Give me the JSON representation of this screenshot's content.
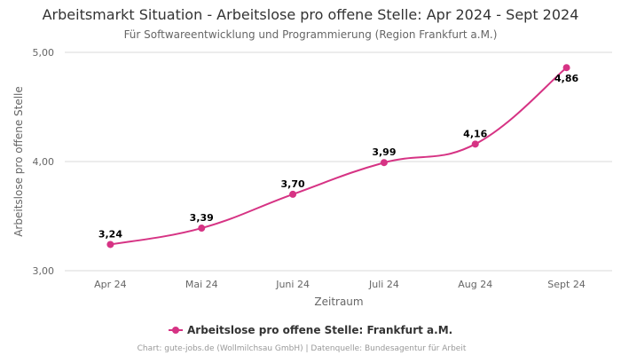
{
  "chart_data": {
    "type": "line",
    "title": "Arbeitsmarkt Situation - Arbeitslose pro offene Stelle: Apr 2024 - Sept 2024",
    "subtitle": "Für Softwareentwicklung und Programmierung (Region Frankfurt a.M.)",
    "xlabel": "Zeitraum",
    "ylabel": "Arbeitslose pro offene Stelle",
    "categories": [
      "Apr 24",
      "Mai 24",
      "Juni 24",
      "Juli 24",
      "Aug 24",
      "Sept 24"
    ],
    "series": [
      {
        "name": "Arbeitslose pro offene Stelle: Frankfurt a.M.",
        "values": [
          3.24,
          3.39,
          3.7,
          3.99,
          4.16,
          4.86
        ],
        "labels": [
          "3,24",
          "3,39",
          "3,70",
          "3,99",
          "4,16",
          "4,86"
        ],
        "color": "#d63384"
      }
    ],
    "ylim": [
      3,
      5
    ],
    "yticks": [
      3,
      4,
      5
    ],
    "ytick_labels": [
      "3,00",
      "4,00",
      "5,00"
    ],
    "grid": true,
    "legend_position": "bottom-center",
    "credits": "Chart: gute-jobs.de (Wollmilchsau GmbH) | Datenquelle: Bundesagentur für Arbeit"
  }
}
